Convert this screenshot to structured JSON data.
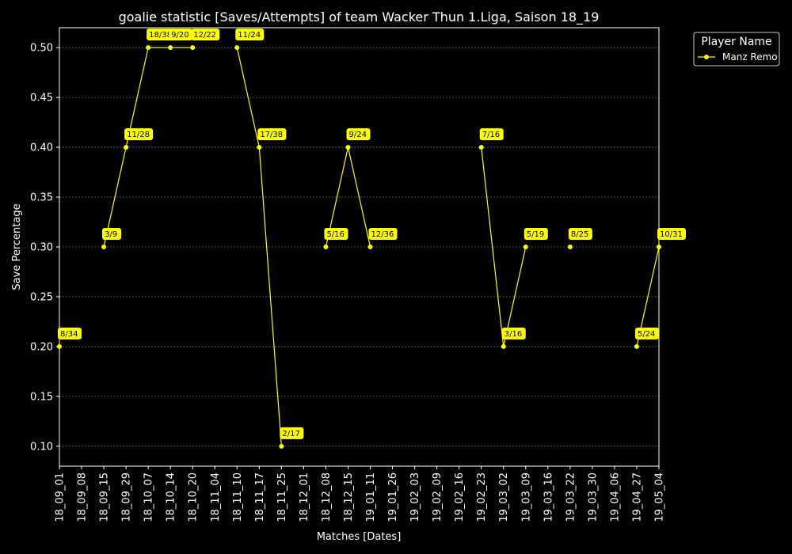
{
  "chart_data": {
    "type": "line",
    "title": "goalie statistic [Saves/Attempts] of team Wacker Thun 1.Liga, Saison 18_19",
    "xlabel": "Matches [Dates]",
    "ylabel": "Save Percentage",
    "categories": [
      "18_09_01",
      "18_09_08",
      "18_09_15",
      "18_09_29",
      "18_10_07",
      "18_10_14",
      "18_10_20",
      "18_11_04",
      "18_11_10",
      "18_11_17",
      "18_11_25",
      "18_12_01",
      "18_12_08",
      "18_12_15",
      "19_01_11",
      "19_01_26",
      "19_02_03",
      "19_02_09",
      "19_02_16",
      "19_02_23",
      "19_03_02",
      "19_03_09",
      "19_03_16",
      "19_03_22",
      "19_03_30",
      "19_04_06",
      "19_04_27",
      "19_05_04"
    ],
    "ylim": [
      0.08,
      0.52
    ],
    "yticks": [
      "0.10",
      "0.15",
      "0.20",
      "0.25",
      "0.30",
      "0.35",
      "0.40",
      "0.45",
      "0.50"
    ],
    "grid": true,
    "legend": {
      "title": "Player Name",
      "placement": "upper-right-outside"
    },
    "series": [
      {
        "name": "Manz Remo",
        "color": "#ffff00",
        "values": [
          0.2,
          null,
          0.3,
          0.4,
          0.5,
          0.5,
          0.5,
          null,
          0.5,
          0.4,
          0.1,
          null,
          0.3,
          0.4,
          0.3,
          null,
          null,
          null,
          null,
          0.4,
          0.2,
          0.3,
          null,
          0.3,
          null,
          null,
          0.2,
          0.3
        ],
        "labels": [
          "8/34",
          "",
          "3/9",
          "11/28",
          "18/38",
          "9/20",
          "12/22",
          "",
          "11/24",
          "17/38",
          "2/17",
          "",
          "5/16",
          "9/24",
          "12/36",
          "",
          "",
          "",
          "",
          "7/16",
          "3/16",
          "5/19",
          "",
          "8/25",
          "",
          "",
          "5/24",
          "10/31"
        ]
      }
    ]
  }
}
